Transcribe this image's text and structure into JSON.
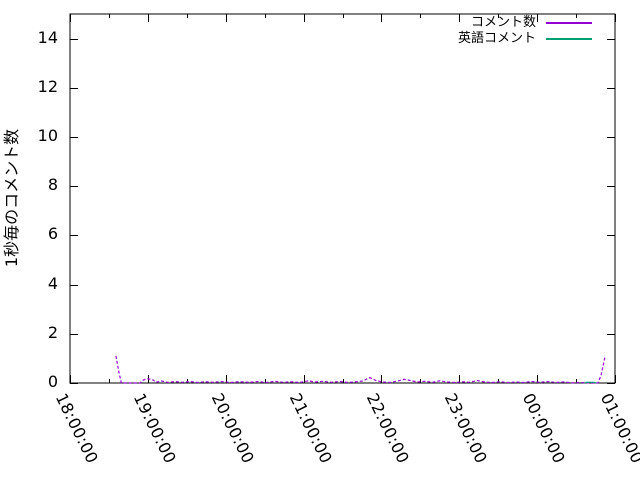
{
  "chart_data": {
    "type": "line",
    "title": "",
    "xlabel": "",
    "ylabel": "1秒毎のコメント数",
    "background_color": "#ffffff",
    "axis_color": "#000000",
    "grid": false,
    "legend_position": "top-right-inside",
    "ylim": [
      0,
      15
    ],
    "xlim_hours_from_1800": [
      0,
      7
    ],
    "y_ticks": [
      0,
      2,
      4,
      6,
      8,
      10,
      12,
      14
    ],
    "x_ticks": [
      {
        "hour": 0,
        "label": "18:00:00"
      },
      {
        "hour": 1,
        "label": "19:00:00"
      },
      {
        "hour": 2,
        "label": "20:00:00"
      },
      {
        "hour": 3,
        "label": "21:00:00"
      },
      {
        "hour": 4,
        "label": "22:00:00"
      },
      {
        "hour": 5,
        "label": "23:00:00"
      },
      {
        "hour": 6,
        "label": "00:00:00"
      },
      {
        "hour": 7,
        "label": "01:00:00"
      }
    ],
    "x_minor_tick_hours": [
      0.5,
      1.5,
      2.5,
      3.5,
      4.5,
      5.5,
      6.5
    ],
    "series": [
      {
        "name": "コメント数",
        "color": "#9400d3",
        "dash": "3 2",
        "points": [
          [
            0.59,
            1.1
          ],
          [
            0.63,
            0.4
          ],
          [
            0.66,
            0.0
          ],
          [
            0.9,
            0.0
          ],
          [
            0.94,
            0.12
          ],
          [
            1.0,
            0.17
          ],
          [
            1.07,
            0.12
          ],
          [
            1.1,
            0.03
          ],
          [
            1.18,
            0.08
          ],
          [
            1.26,
            0.02
          ],
          [
            1.35,
            0.06
          ],
          [
            1.44,
            0.03
          ],
          [
            1.54,
            0.06
          ],
          [
            1.64,
            0.02
          ],
          [
            1.73,
            0.05
          ],
          [
            1.84,
            0.03
          ],
          [
            1.95,
            0.06
          ],
          [
            2.06,
            0.02
          ],
          [
            2.18,
            0.05
          ],
          [
            2.31,
            0.03
          ],
          [
            2.41,
            0.06
          ],
          [
            2.52,
            0.02
          ],
          [
            2.63,
            0.07
          ],
          [
            2.74,
            0.03
          ],
          [
            2.85,
            0.05
          ],
          [
            2.95,
            0.02
          ],
          [
            3.06,
            0.09
          ],
          [
            3.15,
            0.04
          ],
          [
            3.25,
            0.07
          ],
          [
            3.35,
            0.03
          ],
          [
            3.47,
            0.06
          ],
          [
            3.57,
            0.02
          ],
          [
            3.67,
            0.05
          ],
          [
            3.76,
            0.08
          ],
          [
            3.85,
            0.22
          ],
          [
            3.93,
            0.1
          ],
          [
            4.01,
            0.04
          ],
          [
            4.11,
            0.02
          ],
          [
            4.21,
            0.08
          ],
          [
            4.29,
            0.15
          ],
          [
            4.37,
            0.1
          ],
          [
            4.46,
            0.04
          ],
          [
            4.56,
            0.07
          ],
          [
            4.66,
            0.03
          ],
          [
            4.75,
            0.09
          ],
          [
            4.84,
            0.04
          ],
          [
            4.95,
            0.02
          ],
          [
            5.05,
            0.05
          ],
          [
            5.14,
            0.03
          ],
          [
            5.23,
            0.1
          ],
          [
            5.32,
            0.04
          ],
          [
            5.42,
            0.02
          ],
          [
            5.52,
            0.05
          ],
          [
            5.63,
            0.02
          ],
          [
            5.73,
            0.04
          ],
          [
            5.83,
            0.02
          ],
          [
            5.93,
            0.06
          ],
          [
            6.04,
            0.03
          ],
          [
            6.14,
            0.06
          ],
          [
            6.24,
            0.02
          ],
          [
            6.34,
            0.04
          ],
          [
            6.45,
            0.01
          ],
          [
            6.55,
            0.02
          ],
          [
            6.68,
            0.0
          ],
          [
            6.78,
            0.0
          ],
          [
            6.82,
            0.3
          ],
          [
            6.87,
            1.05
          ]
        ]
      },
      {
        "name": "英語コメント",
        "color": "#009e73",
        "dash": "",
        "points": [
          [
            6.61,
            0.0
          ],
          [
            6.63,
            0.03
          ],
          [
            6.73,
            0.03
          ],
          [
            6.76,
            0.0
          ]
        ]
      }
    ]
  }
}
